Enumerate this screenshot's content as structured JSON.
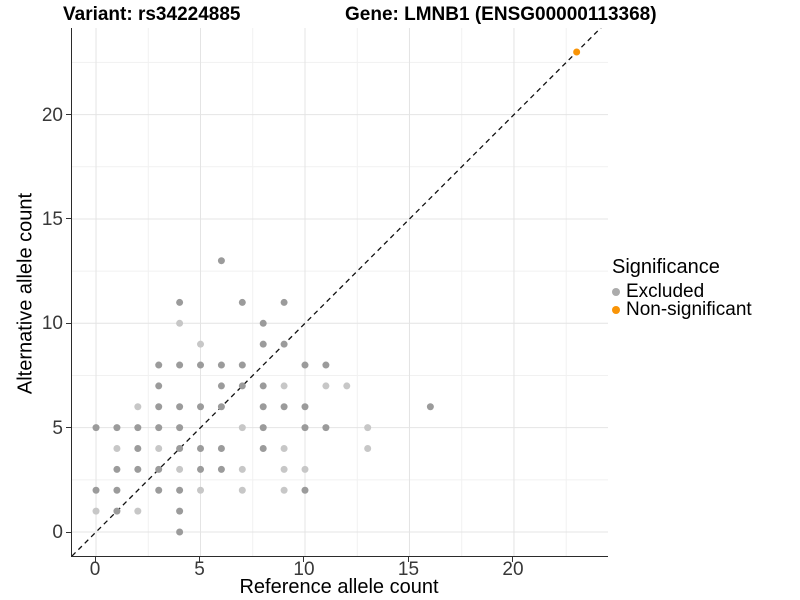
{
  "figure": {
    "title_left": "Variant: rs34224885",
    "title_right": "Gene: LMNB1 (ENSG00000113368)"
  },
  "chart_data": {
    "type": "scatter",
    "title": "Variant: rs34224885 / Gene: LMNB1 (ENSG00000113368)",
    "xlabel": "Reference allele count",
    "ylabel": "Alternative allele count",
    "xlim": [
      -1.15,
      24.5
    ],
    "ylim": [
      -1.15,
      24.15
    ],
    "xticks": [
      0,
      5,
      10,
      15,
      20
    ],
    "yticks": [
      0,
      5,
      10,
      15,
      20
    ],
    "xticks_minor": [
      2.5,
      7.5,
      12.5,
      17.5,
      22.5
    ],
    "yticks_minor": [
      2.5,
      7.5,
      12.5,
      17.5,
      22.5
    ],
    "grid": "major+minor",
    "legend_position": "right",
    "identity_line": {
      "style": "dashed",
      "x1": -1.15,
      "y1": -1.15,
      "x2": 24.5,
      "y2": 24.5,
      "color": "#111111"
    },
    "series": [
      {
        "name": "Excluded",
        "color": "#9b9b9b",
        "color_light": "#c7c7c7",
        "points": [
          [
            0,
            1,
            "l"
          ],
          [
            0,
            2,
            "m"
          ],
          [
            0,
            5,
            "m"
          ],
          [
            1,
            1,
            "m"
          ],
          [
            1,
            2,
            "m"
          ],
          [
            1,
            3,
            "m"
          ],
          [
            1,
            4,
            "l"
          ],
          [
            1,
            5,
            "m"
          ],
          [
            2,
            1,
            "l"
          ],
          [
            2,
            3,
            "m"
          ],
          [
            2,
            4,
            "m"
          ],
          [
            2,
            5,
            "m"
          ],
          [
            2,
            6,
            "l"
          ],
          [
            3,
            2,
            "m"
          ],
          [
            3,
            3,
            "m"
          ],
          [
            3,
            4,
            "l"
          ],
          [
            3,
            5,
            "m"
          ],
          [
            3,
            6,
            "m"
          ],
          [
            3,
            7,
            "m"
          ],
          [
            3,
            8,
            "m"
          ],
          [
            4,
            0,
            "m"
          ],
          [
            4,
            1,
            "m"
          ],
          [
            4,
            2,
            "m"
          ],
          [
            4,
            3,
            "l"
          ],
          [
            4,
            4,
            "m"
          ],
          [
            4,
            5,
            "m"
          ],
          [
            4,
            6,
            "m"
          ],
          [
            4,
            8,
            "m"
          ],
          [
            4,
            10,
            "l"
          ],
          [
            4,
            11,
            "m"
          ],
          [
            5,
            2,
            "l"
          ],
          [
            5,
            3,
            "m"
          ],
          [
            5,
            4,
            "m"
          ],
          [
            5,
            6,
            "m"
          ],
          [
            5,
            8,
            "m"
          ],
          [
            5,
            9,
            "l"
          ],
          [
            6,
            3,
            "m"
          ],
          [
            6,
            4,
            "m"
          ],
          [
            6,
            6,
            "m"
          ],
          [
            6,
            7,
            "m"
          ],
          [
            6,
            8,
            "m"
          ],
          [
            6,
            13,
            "m"
          ],
          [
            7,
            2,
            "l"
          ],
          [
            7,
            3,
            "l"
          ],
          [
            7,
            5,
            "l"
          ],
          [
            7,
            7,
            "m"
          ],
          [
            7,
            8,
            "m"
          ],
          [
            7,
            11,
            "m"
          ],
          [
            8,
            4,
            "m"
          ],
          [
            8,
            5,
            "m"
          ],
          [
            8,
            6,
            "m"
          ],
          [
            8,
            7,
            "m"
          ],
          [
            8,
            9,
            "m"
          ],
          [
            8,
            10,
            "m"
          ],
          [
            9,
            2,
            "l"
          ],
          [
            9,
            3,
            "l"
          ],
          [
            9,
            4,
            "l"
          ],
          [
            9,
            6,
            "m"
          ],
          [
            9,
            7,
            "l"
          ],
          [
            9,
            9,
            "m"
          ],
          [
            9,
            11,
            "m"
          ],
          [
            10,
            2,
            "m"
          ],
          [
            10,
            3,
            "l"
          ],
          [
            10,
            5,
            "m"
          ],
          [
            10,
            6,
            "m"
          ],
          [
            10,
            8,
            "m"
          ],
          [
            11,
            5,
            "m"
          ],
          [
            11,
            7,
            "l"
          ],
          [
            11,
            8,
            "m"
          ],
          [
            12,
            7,
            "l"
          ],
          [
            13,
            4,
            "l"
          ],
          [
            13,
            5,
            "l"
          ],
          [
            16,
            6,
            "m"
          ]
        ]
      },
      {
        "name": "Non-significant",
        "color": "#F99406",
        "points": [
          [
            23,
            23,
            "m"
          ]
        ]
      }
    ],
    "legend": {
      "title": "Significance",
      "items": [
        {
          "label": "Excluded",
          "color": "#ababab"
        },
        {
          "label": "Non-significant",
          "color": "#F99406"
        }
      ]
    },
    "colors": {
      "grid_major": "#e4e4e4",
      "grid_minor": "#f1f1f1",
      "panel_border": "#2b2b2b",
      "tick": "#333333",
      "tick_label": "#383838"
    }
  }
}
